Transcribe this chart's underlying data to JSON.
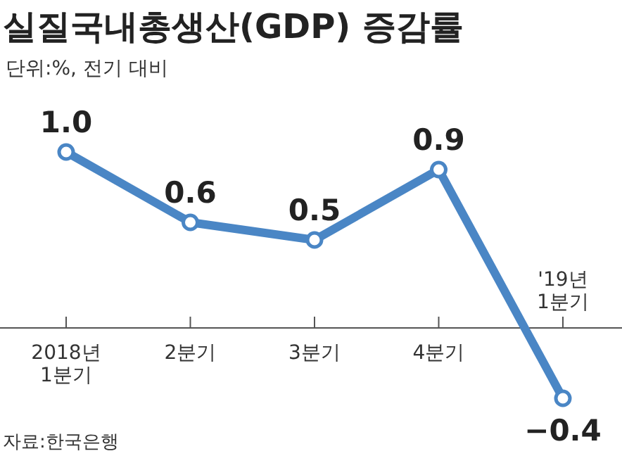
{
  "chart_data": {
    "type": "line",
    "title": "실질국내총생산(GDP) 증감률",
    "subtitle": "단위:%, 전기 대비",
    "categories": [
      "2018년\n1분기",
      "2분기",
      "3분기",
      "4분기",
      "'19년\n1분기"
    ],
    "values": [
      1.0,
      0.6,
      0.5,
      0.9,
      -0.4
    ],
    "value_labels": [
      "1.0",
      "0.6",
      "0.5",
      "0.9",
      "−0.4"
    ],
    "color": "#4a86c5",
    "marker": "circle",
    "annotations": [
      "자료:한국은행"
    ]
  }
}
